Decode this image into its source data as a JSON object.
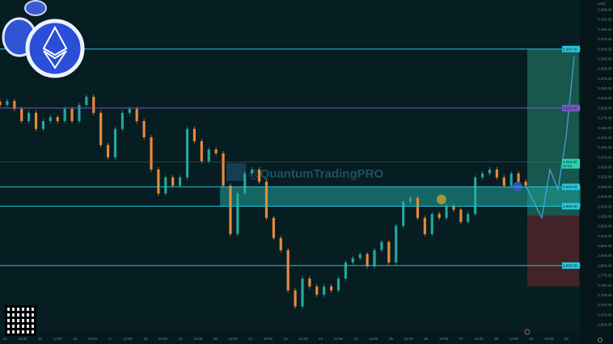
{
  "chart_data": {
    "type": "candlestick",
    "symbol_currency": "USD",
    "watermark": "@QuantumTradingPRO",
    "y_axis": {
      "range": [
        2650,
        3450
      ],
      "tick_labels": [
        "3,450.00",
        "3,425.00",
        "3,400.00",
        "3,375.00",
        "3,350.00",
        "3,325.00",
        "3,300.00",
        "3,275.00",
        "3,250.00",
        "3,225.00",
        "3,200.00",
        "3,175.00",
        "3,150.00",
        "3,125.00",
        "3,100.00",
        "3,075.00",
        "3,050.00",
        "3,025.00",
        "3,000.00",
        "2,975.00",
        "2,950.00",
        "2,925.00",
        "2,900.00",
        "2,875.00",
        "2,850.00",
        "2,825.00",
        "2,800.00",
        "2,775.00",
        "2,750.00",
        "2,725.00",
        "2,700.00",
        "2,675.00",
        "2,650.00"
      ]
    },
    "x_axis": {
      "tick_labels": [
        "14",
        "12:00",
        "15",
        "12:00",
        "16",
        "12:00",
        "17",
        "12:00",
        "18",
        "12:00",
        "19",
        "12:00",
        "20",
        "12:00",
        "21",
        "12:00",
        "22",
        "12:00",
        "23",
        "12:00",
        "24",
        "12:00",
        "25",
        "12:00",
        "26",
        "12:00",
        "27",
        "12:00",
        "28",
        "12:00",
        "29",
        "12:00",
        "30"
      ]
    },
    "closes": [
      3208,
      3218,
      3198,
      3167,
      3188,
      3147,
      3167,
      3177,
      3167,
      3198,
      3167,
      3208,
      3229,
      3188,
      3106,
      3075,
      3147,
      3188,
      3198,
      3167,
      3126,
      3044,
      2983,
      3024,
      3003,
      3024,
      3147,
      3116,
      3065,
      3095,
      3085,
      3003,
      2880,
      2983,
      3034,
      3044,
      3013,
      2921,
      2870,
      2839,
      2737,
      2696,
      2767,
      2747,
      2726,
      2747,
      2737,
      2767,
      2808,
      2819,
      2829,
      2798,
      2839,
      2860,
      2808,
      2901,
      2962,
      2972,
      2921,
      2880,
      2931,
      2921,
      2952,
      2942,
      2911,
      2931,
      3024,
      3034,
      3044,
      3024,
      3003,
      3034,
      3013,
      3003
    ],
    "projection_path": [
      3003,
      2962,
      2921,
      3044,
      2993,
      3126,
      3331
    ],
    "levels": [
      {
        "price": 3350,
        "label": "3,350.00",
        "color": "#26c6da"
      },
      {
        "price": 3200,
        "label": "3,200.00",
        "color": "#7e57c2"
      },
      {
        "price": 3062.84,
        "label": "3,062.84",
        "sublabel": "07:54",
        "color": "#4a6a6e"
      },
      {
        "price": 3000,
        "label": "3,000.00",
        "color": "#26c6da"
      },
      {
        "price": 2950.8,
        "label": "2,950.80",
        "color": "#26c6da"
      },
      {
        "price": 2800,
        "label": "2,800.00",
        "color": "#26c6da"
      }
    ],
    "demand_zone": [
      2950.8,
      3000
    ],
    "position": {
      "target": 3350,
      "entry": 2927,
      "stop": 2747
    },
    "colors": {
      "up": "#26a69a",
      "down": "#e8893a",
      "zone": "#1fa39a",
      "profit": "#1e6b5e",
      "loss": "#4a2329",
      "projection": "#4aa3df"
    }
  }
}
